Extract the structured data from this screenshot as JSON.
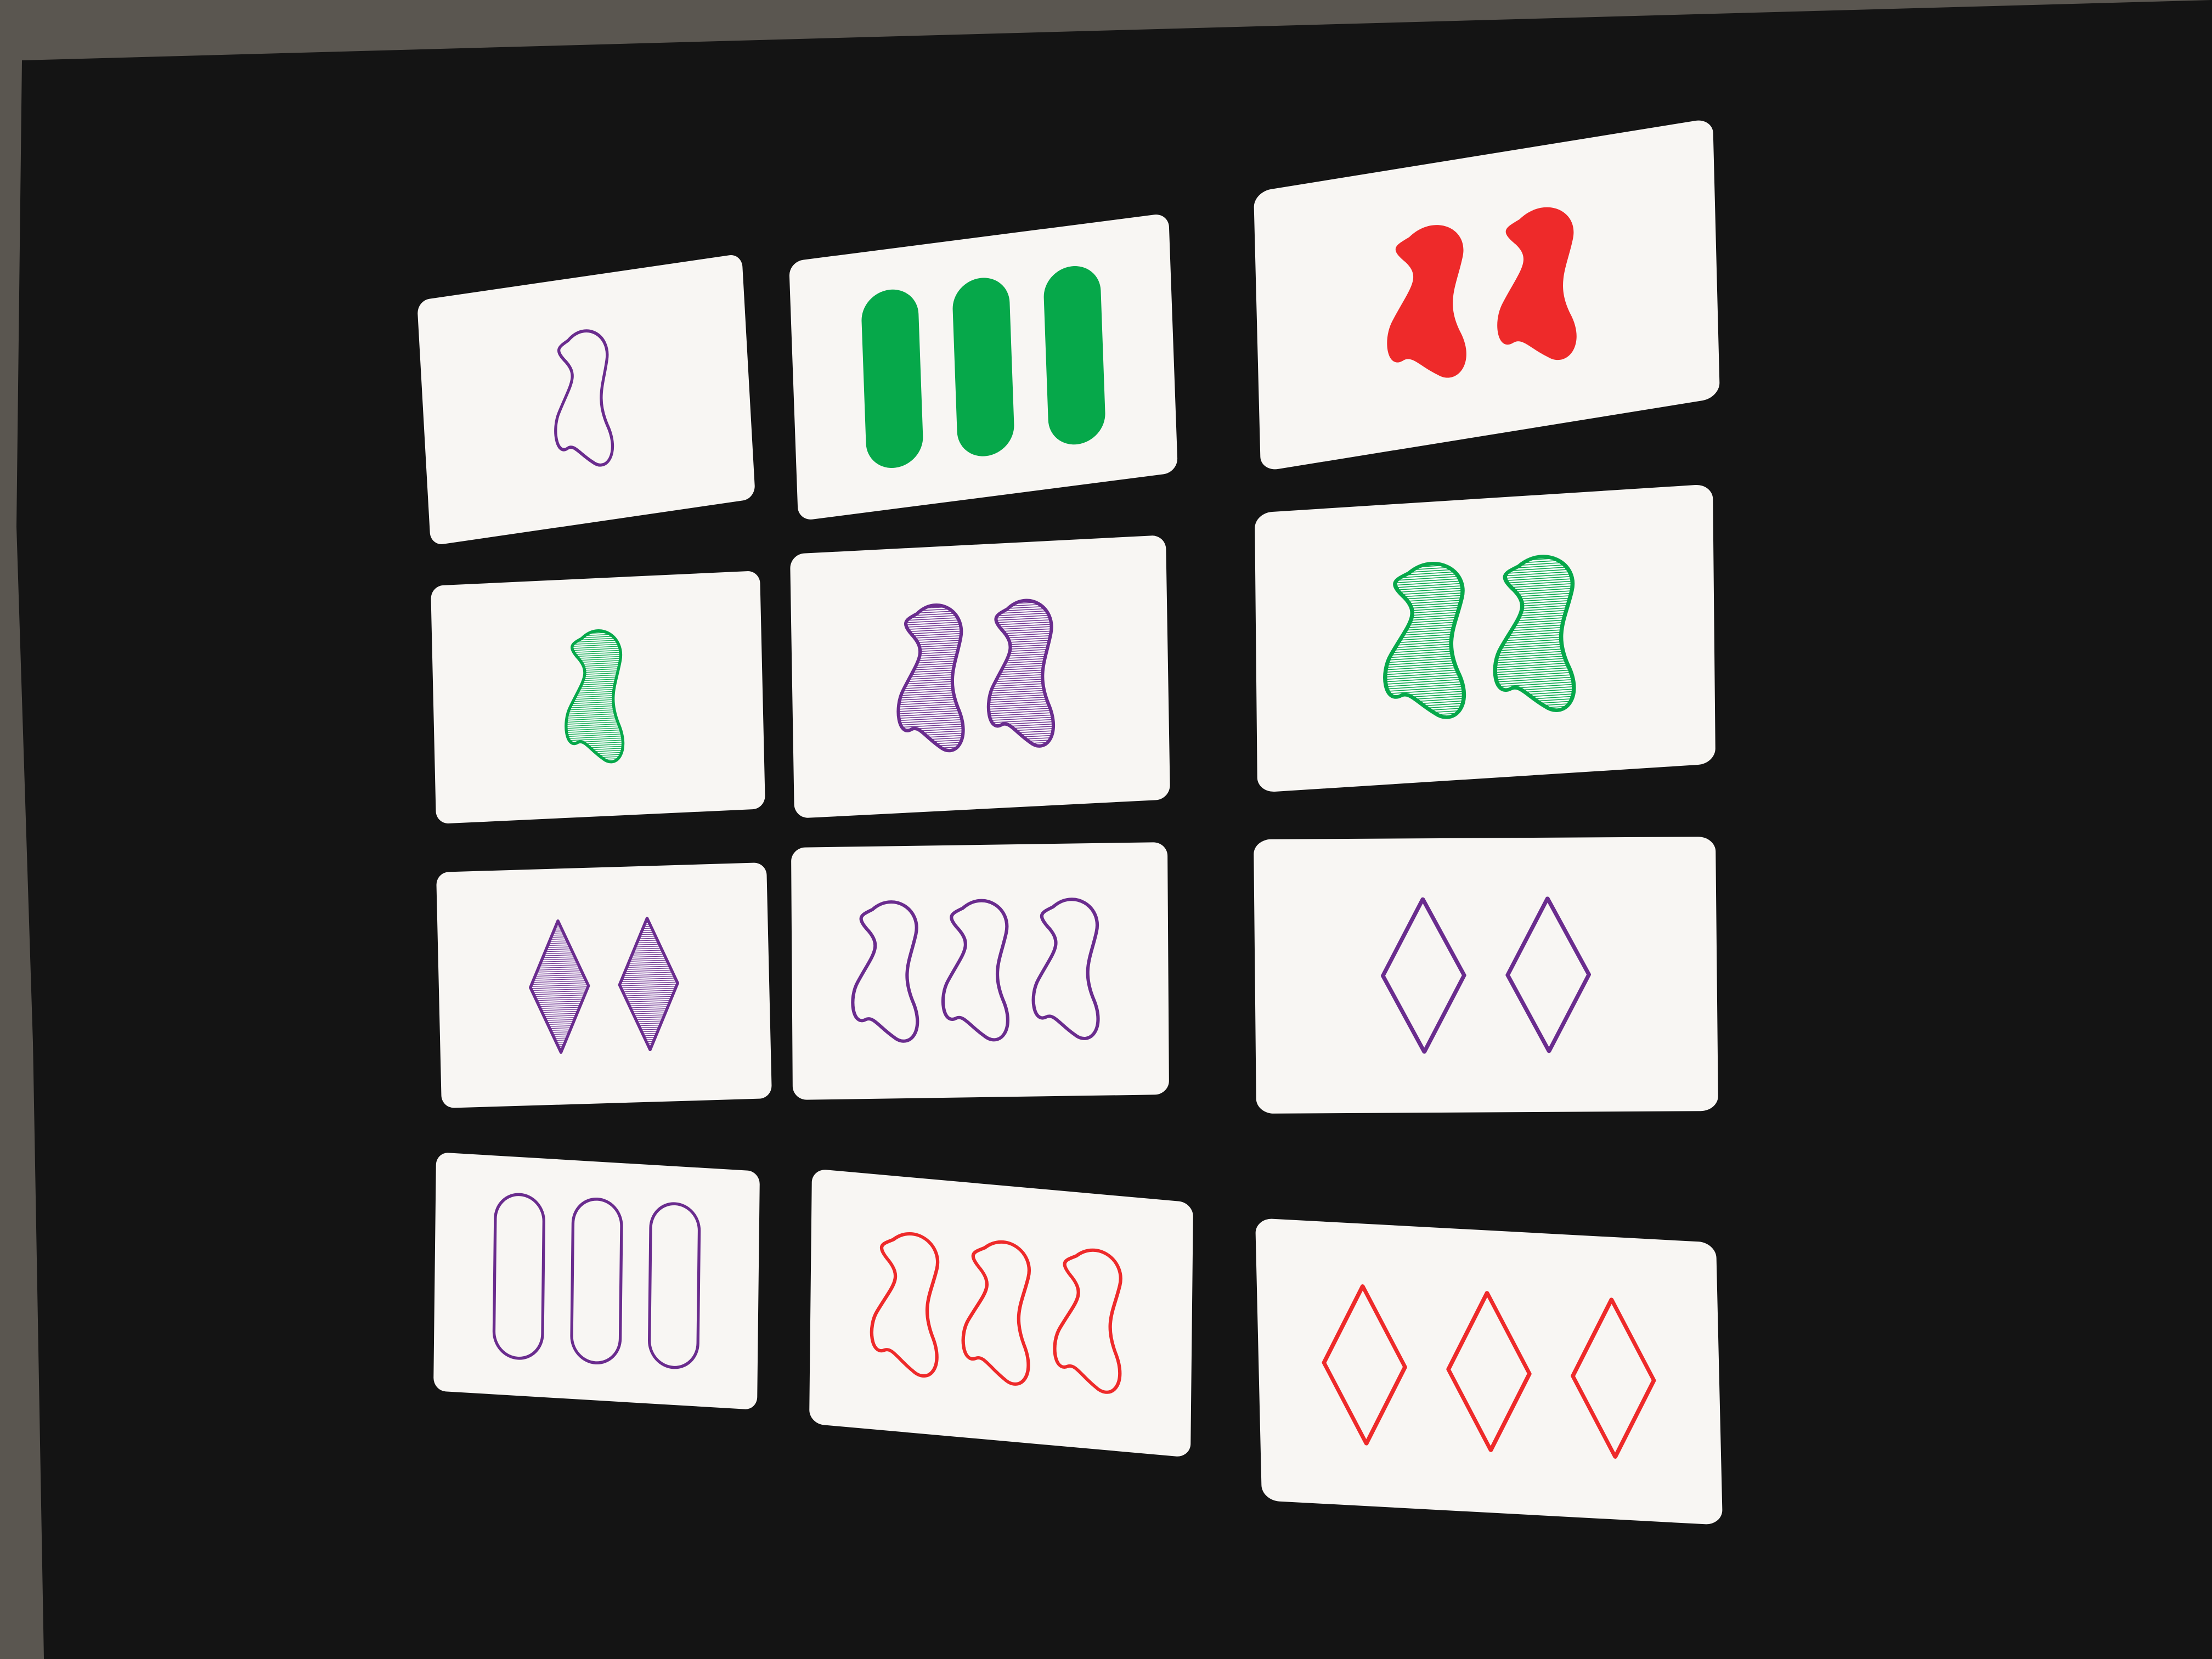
{
  "colors": {
    "purple": "#6a2c8e",
    "green": "#06a84a",
    "red": "#ee2a2a",
    "table": "#141414",
    "backdrop": "#5a5650",
    "card": "#f8f6f3"
  },
  "cards": [
    {
      "row": 1,
      "col": 1,
      "count": 1,
      "shape": "squiggle",
      "color": "purple",
      "shading": "open"
    },
    {
      "row": 1,
      "col": 2,
      "count": 3,
      "shape": "oval",
      "color": "green",
      "shading": "solid"
    },
    {
      "row": 1,
      "col": 3,
      "count": 2,
      "shape": "squiggle",
      "color": "red",
      "shading": "solid"
    },
    {
      "row": 2,
      "col": 1,
      "count": 1,
      "shape": "squiggle",
      "color": "green",
      "shading": "striped"
    },
    {
      "row": 2,
      "col": 2,
      "count": 2,
      "shape": "squiggle",
      "color": "purple",
      "shading": "striped"
    },
    {
      "row": 2,
      "col": 3,
      "count": 2,
      "shape": "squiggle",
      "color": "green",
      "shading": "striped"
    },
    {
      "row": 3,
      "col": 1,
      "count": 2,
      "shape": "diamond",
      "color": "purple",
      "shading": "striped"
    },
    {
      "row": 3,
      "col": 2,
      "count": 3,
      "shape": "squiggle",
      "color": "purple",
      "shading": "open"
    },
    {
      "row": 3,
      "col": 3,
      "count": 2,
      "shape": "diamond",
      "color": "purple",
      "shading": "open"
    },
    {
      "row": 4,
      "col": 1,
      "count": 3,
      "shape": "oval",
      "color": "purple",
      "shading": "open"
    },
    {
      "row": 4,
      "col": 2,
      "count": 3,
      "shape": "squiggle",
      "color": "red",
      "shading": "open"
    },
    {
      "row": 4,
      "col": 3,
      "count": 3,
      "shape": "diamond",
      "color": "red",
      "shading": "open"
    }
  ]
}
